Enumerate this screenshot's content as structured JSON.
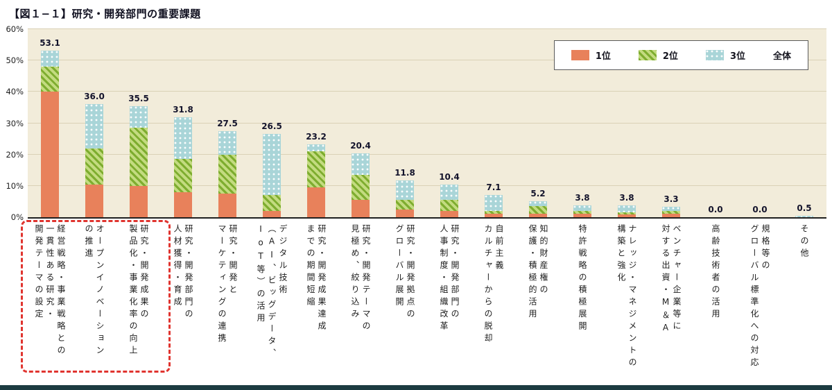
{
  "chart_data": {
    "type": "bar",
    "stacked": true,
    "title": "【図１−１】研究・開発部門の重要課題",
    "unit": "%",
    "ylim": [
      0,
      60
    ],
    "yticks": [
      "0%",
      "10%",
      "20%",
      "30%",
      "40%",
      "50%",
      "60%"
    ],
    "grid": true,
    "legend_position": "top-right-inside",
    "legend": [
      "1位",
      "2位",
      "3位",
      "全体"
    ],
    "colors": {
      "rank1": "#E8815B",
      "rank2": "#8FBE3A",
      "rank3": "#A9D5D8",
      "plot_background": "#F2ECDA",
      "highlight_box": "#E0342F"
    },
    "categories": [
      {
        "label": "経営戦略・事業戦略との一貫性ある研究・開発テーマの設定",
        "lines": [
          "経営戦略・事業戦略との",
          "一貫性ある研究・",
          "開発テーマの設定"
        ]
      },
      {
        "label": "オープンイノベーションの推進",
        "lines": [
          "オープンイノベーション",
          "の推進"
        ]
      },
      {
        "label": "研究・開発成果の製品化・事業化率の向上",
        "lines": [
          "研究・開発成果の",
          "製品化・事業化率の向上"
        ]
      },
      {
        "label": "研究・開発部門の人材獲得・育成",
        "lines": [
          "研究・開発部門の",
          "人材獲得・育成"
        ]
      },
      {
        "label": "研究・開発とマーケティングの連携",
        "lines": [
          "研究・開発と",
          "マーケティングの連携"
        ]
      },
      {
        "label": "デジタル技術（AI、ビッグデータ、IoT等）の活用",
        "lines": [
          "デジタル技術",
          "（AI、ビッグデータ、",
          "IoT等）の活用"
        ]
      },
      {
        "label": "研究・開発成果達成までの期間短縮",
        "lines": [
          "研究・開発成果達成",
          "までの期間短縮"
        ]
      },
      {
        "label": "研究・開発テーマの見極め、絞り込み",
        "lines": [
          "研究・開発テーマの",
          "見極め、絞り込み"
        ]
      },
      {
        "label": "研究・開発拠点のグローバル展開",
        "lines": [
          "研究・開発拠点の",
          "グローバル展開"
        ]
      },
      {
        "label": "研究・開発部門の人事制度・組織改革",
        "lines": [
          "研究・開発部門の",
          "人事制度・組織改革"
        ]
      },
      {
        "label": "自前主義カルチャーからの脱却",
        "lines": [
          "自前主義",
          "カルチャーからの脱却"
        ]
      },
      {
        "label": "知的財産権の保護・積極的活用",
        "lines": [
          "知的財産権の",
          "保護・積極的活用"
        ]
      },
      {
        "label": "特許戦略の積極展開",
        "lines": [
          "特許戦略の積極展開"
        ]
      },
      {
        "label": "ナレッジ・マネジメントの構築と強化",
        "lines": [
          "ナレッジ・マネジメントの",
          "構築と強化"
        ]
      },
      {
        "label": "ベンチャー企業等に対する出資・M＆A",
        "lines": [
          "ベンチャー企業等に",
          "対する出資・M＆A"
        ]
      },
      {
        "label": "高齢技術者の活用",
        "lines": [
          "高齢技術者の活用"
        ]
      },
      {
        "label": "規格等のグローバル標準化への対応",
        "lines": [
          "規格等の",
          "グローバル標準化への対応"
        ]
      },
      {
        "label": "その他",
        "lines": [
          "その他"
        ]
      }
    ],
    "series": [
      {
        "name": "1位",
        "values": [
          40.0,
          10.5,
          10.0,
          8.0,
          7.5,
          2.0,
          9.5,
          5.5,
          2.5,
          2.0,
          1.0,
          1.0,
          1.0,
          0.8,
          1.0,
          0.0,
          0.0,
          0.0
        ]
      },
      {
        "name": "2位",
        "values": [
          8.0,
          11.5,
          18.5,
          10.5,
          12.5,
          5.0,
          11.5,
          8.0,
          3.0,
          3.5,
          1.0,
          2.5,
          1.0,
          0.8,
          1.0,
          0.0,
          0.0,
          0.0
        ]
      },
      {
        "name": "3位",
        "values": [
          5.1,
          14.0,
          7.0,
          13.3,
          7.5,
          19.5,
          2.2,
          6.9,
          6.3,
          4.9,
          5.1,
          1.7,
          1.8,
          2.2,
          1.3,
          0.0,
          0.0,
          0.5
        ]
      }
    ],
    "totals": [
      53.1,
      36.0,
      35.5,
      31.8,
      27.5,
      26.5,
      23.2,
      20.4,
      11.8,
      10.4,
      7.1,
      5.2,
      3.8,
      3.8,
      3.3,
      0.0,
      0.0,
      0.5
    ],
    "highlighted_categories": [
      0,
      1,
      2
    ]
  }
}
